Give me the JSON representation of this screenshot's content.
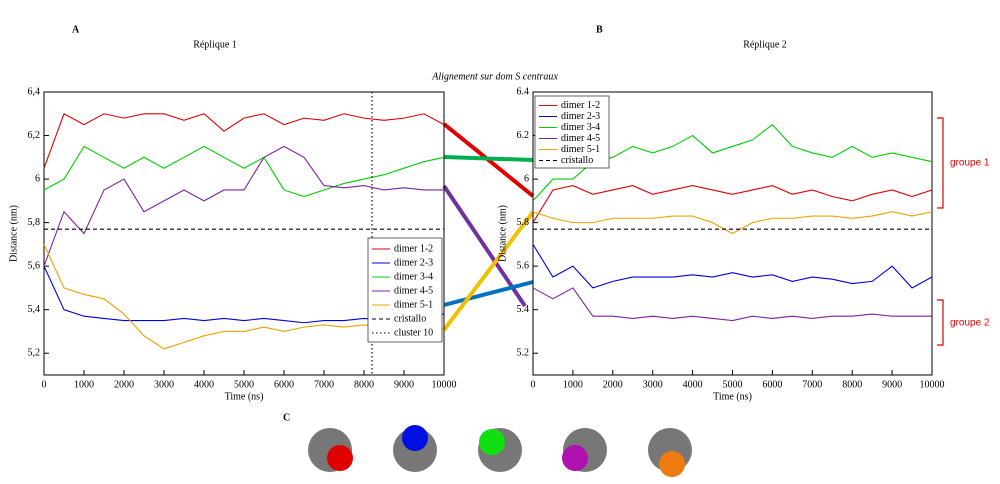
{
  "figure": {
    "annotation": "Alignement sur dom S centraux",
    "panel_c": "C"
  },
  "chart_data": [
    {
      "type": "line",
      "panel": "A",
      "title": "Réplique 1",
      "xlabel": "Time (ns)",
      "ylabel": "Distance (nm)",
      "x": [
        0,
        500,
        1000,
        1500,
        2000,
        2500,
        3000,
        3500,
        4000,
        4500,
        5000,
        5500,
        6000,
        6500,
        7000,
        7500,
        8000,
        8500,
        9000,
        9500,
        10000
      ],
      "xlim": [
        0,
        10000
      ],
      "xticks": [
        0,
        1000,
        2000,
        3000,
        4000,
        5000,
        6000,
        7000,
        8000,
        9000,
        10000
      ],
      "ylim": [
        5.1,
        6.4
      ],
      "yticks": [
        {
          "value": 5.2,
          "label": "5,2"
        },
        {
          "value": 5.4,
          "label": "5,4"
        },
        {
          "value": 5.6,
          "label": "5,6"
        },
        {
          "value": 5.8,
          "label": "5,8"
        },
        6,
        {
          "value": 6.2,
          "label": "6,2"
        },
        {
          "value": 6.4,
          "label": "6,4"
        }
      ],
      "legend": "right",
      "series": [
        {
          "name": "dimer 1-2",
          "color": "#e00000",
          "values": [
            6.05,
            6.3,
            6.25,
            6.3,
            6.28,
            6.3,
            6.3,
            6.27,
            6.3,
            6.22,
            6.28,
            6.3,
            6.25,
            6.28,
            6.27,
            6.3,
            6.28,
            6.27,
            6.28,
            6.3,
            6.25
          ]
        },
        {
          "name": "dimer 2-3",
          "color": "#0000e0",
          "values": [
            5.6,
            5.4,
            5.37,
            5.36,
            5.35,
            5.35,
            5.35,
            5.36,
            5.35,
            5.36,
            5.35,
            5.36,
            5.35,
            5.34,
            5.35,
            5.35,
            5.36,
            5.35,
            5.37,
            5.37,
            5.38
          ]
        },
        {
          "name": "dimer 3-4",
          "color": "#00d000",
          "values": [
            5.95,
            6.0,
            6.15,
            6.1,
            6.05,
            6.1,
            6.05,
            6.1,
            6.15,
            6.1,
            6.05,
            6.1,
            5.95,
            5.92,
            5.95,
            5.98,
            6.0,
            6.02,
            6.05,
            6.08,
            6.1
          ]
        },
        {
          "name": "dimer 4-5",
          "color": "#8020a0",
          "values": [
            5.6,
            5.85,
            5.75,
            5.95,
            6.0,
            5.85,
            5.9,
            5.95,
            5.9,
            5.95,
            5.95,
            6.1,
            6.15,
            6.1,
            5.97,
            5.96,
            5.97,
            5.95,
            5.96,
            5.95,
            5.95
          ]
        },
        {
          "name": "dimer 5-1",
          "color": "#f0a000",
          "values": [
            5.7,
            5.5,
            5.47,
            5.45,
            5.38,
            5.28,
            5.22,
            5.25,
            5.28,
            5.3,
            5.3,
            5.32,
            5.3,
            5.32,
            5.33,
            5.32,
            5.33,
            5.32,
            5.32,
            5.3,
            5.3
          ]
        },
        {
          "name": "cristallo",
          "color": "#000000",
          "dash": "dashed",
          "values": [
            5.77,
            5.77,
            5.77,
            5.77,
            5.77,
            5.77,
            5.77,
            5.77,
            5.77,
            5.77,
            5.77,
            5.77,
            5.77,
            5.77,
            5.77,
            5.77,
            5.77,
            5.77,
            5.77,
            5.77,
            5.77
          ]
        },
        {
          "name": "cluster 10",
          "color": "#000000",
          "dash": "dotted",
          "x_value": 8200
        }
      ]
    },
    {
      "type": "line",
      "panel": "B",
      "title": "Réplique 2",
      "xlabel": "Time (ns)",
      "ylabel": "Distance (nm)",
      "x": [
        0,
        500,
        1000,
        1500,
        2000,
        2500,
        3000,
        3500,
        4000,
        4500,
        5000,
        5500,
        6000,
        6500,
        7000,
        7500,
        8000,
        8500,
        9000,
        9500,
        10000
      ],
      "xlim": [
        0,
        10000
      ],
      "xticks": [
        0,
        1000,
        2000,
        3000,
        4000,
        5000,
        6000,
        7000,
        8000,
        9000,
        10000
      ],
      "ylim": [
        5.1,
        6.4
      ],
      "yticks": [
        5.2,
        5.4,
        5.6,
        5.8,
        6,
        6.2,
        6.4
      ],
      "legend": "upper left",
      "annotations": [
        "groupe 1",
        "groupe 2"
      ],
      "series": [
        {
          "name": "dimer 1-2",
          "color": "#e00000",
          "values": [
            5.8,
            5.95,
            5.97,
            5.93,
            5.95,
            5.97,
            5.93,
            5.95,
            5.97,
            5.95,
            5.93,
            5.95,
            5.97,
            5.93,
            5.95,
            5.92,
            5.9,
            5.93,
            5.95,
            5.92,
            5.95
          ]
        },
        {
          "name": "dimer 2-3",
          "color": "#0000e0",
          "values": [
            5.7,
            5.55,
            5.6,
            5.5,
            5.53,
            5.55,
            5.55,
            5.55,
            5.56,
            5.55,
            5.57,
            5.55,
            5.56,
            5.53,
            5.55,
            5.54,
            5.52,
            5.53,
            5.6,
            5.5,
            5.55
          ]
        },
        {
          "name": "dimer 3-4",
          "color": "#00d000",
          "values": [
            5.9,
            6.0,
            6.0,
            6.08,
            6.1,
            6.15,
            6.12,
            6.15,
            6.2,
            6.12,
            6.15,
            6.18,
            6.25,
            6.15,
            6.12,
            6.1,
            6.15,
            6.1,
            6.12,
            6.1,
            6.08
          ]
        },
        {
          "name": "dimer 4-5",
          "color": "#8020a0",
          "values": [
            5.5,
            5.45,
            5.5,
            5.37,
            5.37,
            5.36,
            5.37,
            5.36,
            5.37,
            5.36,
            5.35,
            5.37,
            5.36,
            5.37,
            5.36,
            5.37,
            5.37,
            5.38,
            5.37,
            5.37,
            5.37
          ]
        },
        {
          "name": "dimer 5-1",
          "color": "#f0a000",
          "values": [
            5.85,
            5.82,
            5.8,
            5.8,
            5.82,
            5.82,
            5.82,
            5.83,
            5.83,
            5.8,
            5.75,
            5.8,
            5.82,
            5.82,
            5.83,
            5.83,
            5.82,
            5.83,
            5.85,
            5.83,
            5.85
          ]
        },
        {
          "name": "cristallo",
          "color": "#000000",
          "dash": "dashed",
          "values": [
            5.77,
            5.77,
            5.77,
            5.77,
            5.77,
            5.77,
            5.77,
            5.77,
            5.77,
            5.77,
            5.77,
            5.77,
            5.77,
            5.77,
            5.77,
            5.77,
            5.77,
            5.77,
            5.77,
            5.77,
            5.77
          ]
        }
      ]
    }
  ]
}
